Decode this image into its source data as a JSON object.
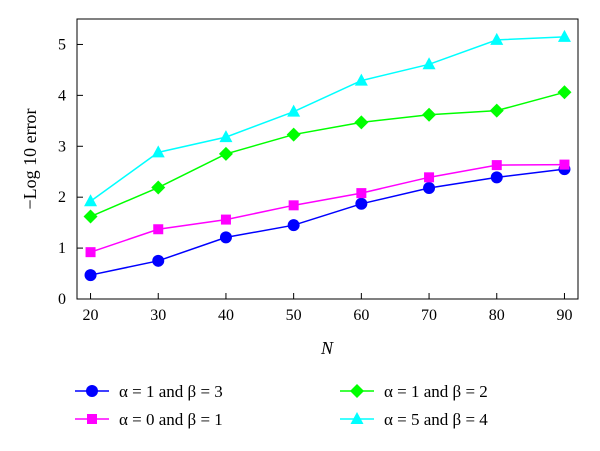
{
  "chart_data": {
    "type": "line",
    "xlabel": "N",
    "ylabel": "−Log 10 error",
    "x": [
      20,
      30,
      40,
      50,
      60,
      70,
      80,
      90
    ],
    "xlim": [
      18,
      92
    ],
    "ylim": [
      0,
      5.5
    ],
    "xticks": [
      "20",
      "30",
      "40",
      "50",
      "60",
      "70",
      "80",
      "90"
    ],
    "yticks": [
      "0",
      "1",
      "2",
      "3",
      "4",
      "5"
    ],
    "grid": false,
    "legend_position": "bottom",
    "series": [
      {
        "name": "α = 1 and β = 3",
        "color": "#0000ff",
        "marker": "circle",
        "values": [
          0.47,
          0.75,
          1.21,
          1.45,
          1.87,
          2.18,
          2.39,
          2.55
        ]
      },
      {
        "name": "α = 0 and β = 1",
        "color": "#ff00ff",
        "marker": "square",
        "values": [
          0.92,
          1.37,
          1.56,
          1.84,
          2.08,
          2.39,
          2.63,
          2.64
        ]
      },
      {
        "name": "α = 1 and β = 2",
        "color": "#00ff00",
        "marker": "diamond",
        "values": [
          1.62,
          2.19,
          2.85,
          3.23,
          3.47,
          3.62,
          3.7,
          4.06
        ]
      },
      {
        "name": "α = 5 and β = 4",
        "color": "#00ffff",
        "marker": "triangle",
        "values": [
          1.92,
          2.88,
          3.18,
          3.68,
          4.29,
          4.61,
          5.09,
          5.15
        ]
      }
    ]
  }
}
